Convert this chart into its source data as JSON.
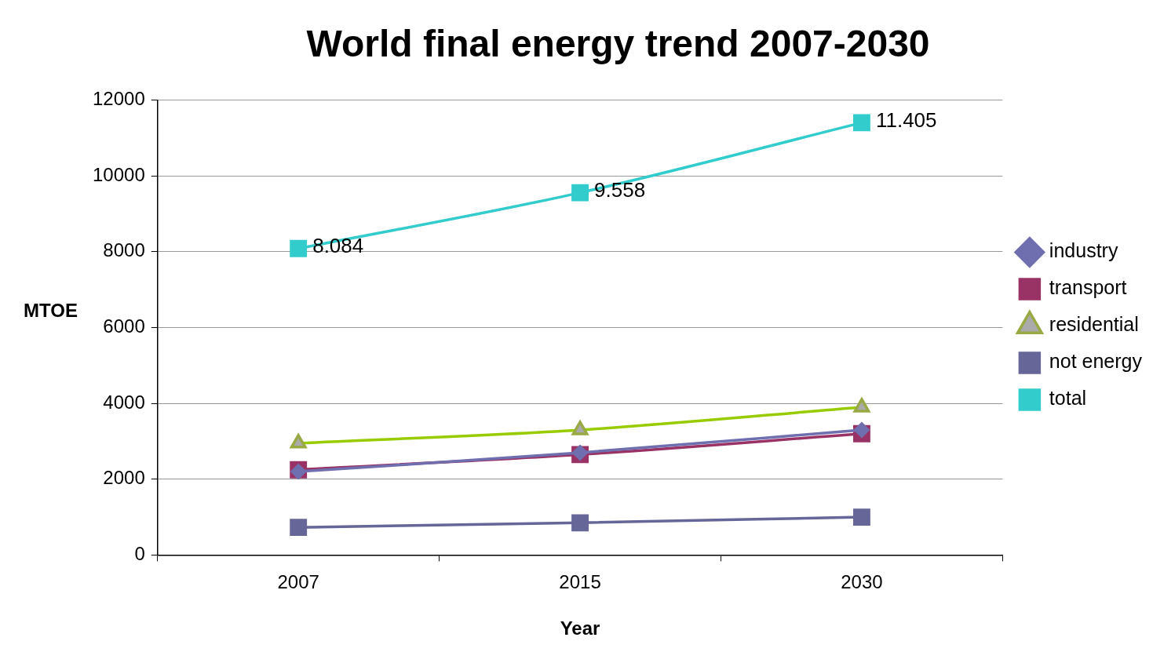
{
  "chart_data": {
    "type": "line",
    "title": "World final energy trend 2007-2030",
    "xlabel": "Year",
    "ylabel": "MTOE",
    "categories": [
      "2007",
      "2015",
      "2030"
    ],
    "series": [
      {
        "name": "industry",
        "color": "#6f6fb0",
        "marker": "diamond",
        "values": [
          2200,
          2700,
          3300
        ]
      },
      {
        "name": "transport",
        "color": "#993366",
        "marker": "square",
        "values": [
          2250,
          2650,
          3200
        ]
      },
      {
        "name": "residential",
        "color": "#99cc00",
        "marker": "triangle",
        "values": [
          2950,
          3300,
          3900
        ]
      },
      {
        "name": "not energy",
        "color": "#666699",
        "marker": "square",
        "values": [
          730,
          850,
          1000
        ]
      },
      {
        "name": "total",
        "color": "#33cccc",
        "marker": "square",
        "values": [
          8084,
          9558,
          11405
        ],
        "value_labels": [
          "8.084",
          "9.558",
          "11.405"
        ]
      }
    ],
    "ylim": [
      0,
      12000
    ],
    "yticks": [
      0,
      2000,
      4000,
      6000,
      8000,
      10000,
      12000
    ],
    "grid": "y",
    "legend": "right"
  }
}
